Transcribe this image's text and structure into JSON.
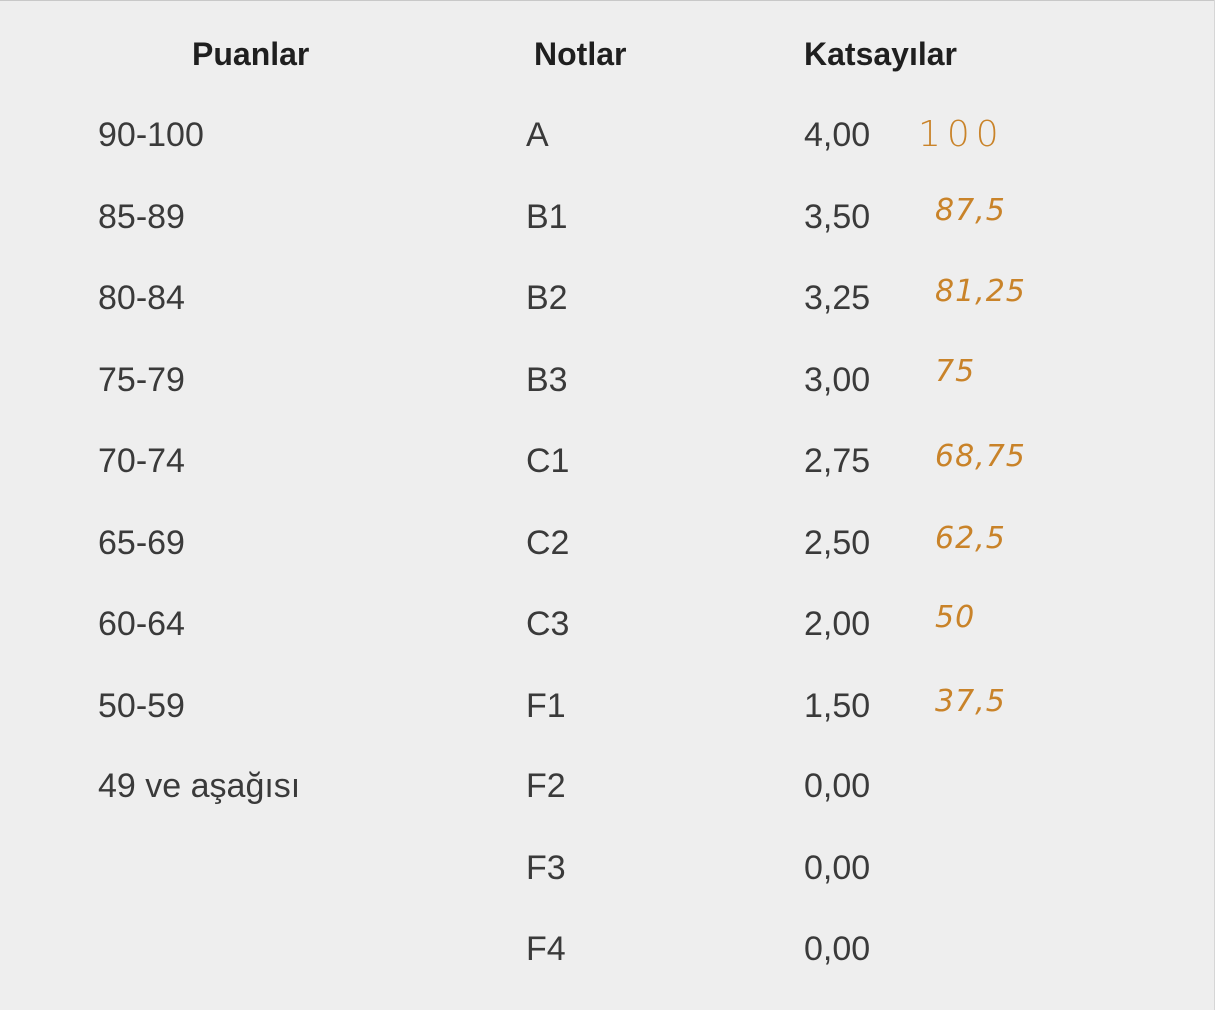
{
  "headers": {
    "puanlar": "Puanlar",
    "notlar": "Notlar",
    "katsayilar": "Katsayılar"
  },
  "rows": [
    {
      "puan": "90-100",
      "not": "A",
      "katsayi": "4,00",
      "handwritten": "100"
    },
    {
      "puan": "85-89",
      "not": "B1",
      "katsayi": "3,50",
      "handwritten": "87,5"
    },
    {
      "puan": "80-84",
      "not": "B2",
      "katsayi": "3,25",
      "handwritten": "81,25"
    },
    {
      "puan": "75-79",
      "not": "B3",
      "katsayi": "3,00",
      "handwritten": "75"
    },
    {
      "puan": "70-74",
      "not": "C1",
      "katsayi": "2,75",
      "handwritten": "68,75"
    },
    {
      "puan": "65-69",
      "not": "C2",
      "katsayi": "2,50",
      "handwritten": "62,5"
    },
    {
      "puan": "60-64",
      "not": "C3",
      "katsayi": "2,00",
      "handwritten": "50"
    },
    {
      "puan": "50-59",
      "not": "F1",
      "katsayi": "1,50",
      "handwritten": "37,5"
    },
    {
      "puan": "49 ve aşağısı",
      "not": "F2",
      "katsayi": "0,00",
      "handwritten": ""
    },
    {
      "puan": "",
      "not": "F3",
      "katsayi": "0,00",
      "handwritten": ""
    },
    {
      "puan": "",
      "not": "F4",
      "katsayi": "0,00",
      "handwritten": ""
    }
  ],
  "colors": {
    "background": "#eeeeee",
    "text": "#3a3a3a",
    "header": "#1f1f1f",
    "handwriting": "#c98329"
  }
}
